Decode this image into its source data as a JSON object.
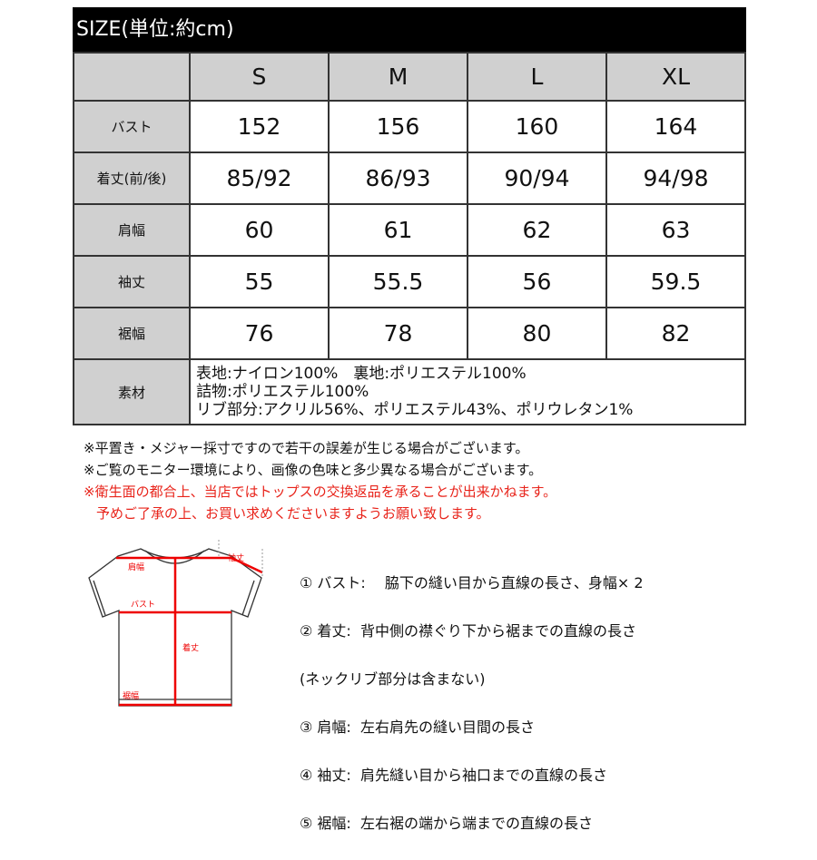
{
  "title": "SIZE(単位:約cm)",
  "headers": [
    "S",
    "M",
    "L",
    "XL"
  ],
  "rows": [
    {
      "label": "バスト",
      "values": [
        "152",
        "156",
        "160",
        "164"
      ]
    },
    {
      "label": "着丈(前/後)",
      "values": [
        "85/92",
        "86/93",
        "90/94",
        "94/98"
      ]
    },
    {
      "label": "肩幅",
      "values": [
        "60",
        "61",
        "62",
        "63"
      ]
    },
    {
      "label": "袖丈",
      "values": [
        "55",
        "55.5",
        "56",
        "59.5"
      ]
    },
    {
      "label": "裾幅",
      "values": [
        "76",
        "78",
        "80",
        "82"
      ]
    }
  ],
  "material": {
    "label": "素材",
    "lines": [
      "表地:ナイロン100%　裏地:ポリエステル100%",
      "詰物:ポリエステル100%",
      "リブ部分:アクリル56%、ポリエステル43%、ポリウレタン1%"
    ]
  },
  "notes": [
    "※平置き・メジャー採寸ですので若干の誤差が生じる場合がございます。",
    "※ご覧のモニター環境により、画像の色味と多少異なる場合がございます。"
  ],
  "red_notes": [
    "※衛生面の都合上、当店ではトップスの交換返品を承ることが出来かねます。",
    "予めご了承の上、お買い求めくださいますようお願い致します。"
  ],
  "diagram_labels": {
    "shoulder": "肩幅",
    "sleeve": "袖丈",
    "bust": "バスト",
    "length": "着丈",
    "hem": "裾幅"
  },
  "descriptions": [
    "① バスト:　 脇下の縫い目から直線の長さ、身幅× 2",
    "② 着丈:  背中側の襟ぐり下から裾までの直線の長さ",
    "(ネックリブ部分は含まない)",
    "③ 肩幅:  左右肩先の縫い目間の長さ",
    "④ 袖丈:  肩先縫い目から袖口までの直線の長さ",
    "⑤ 裾幅:  左右裾の端から端までの直線の長さ"
  ],
  "colors": {
    "accent_red": "#e8231a",
    "header_gray": "#d0d0d0"
  }
}
